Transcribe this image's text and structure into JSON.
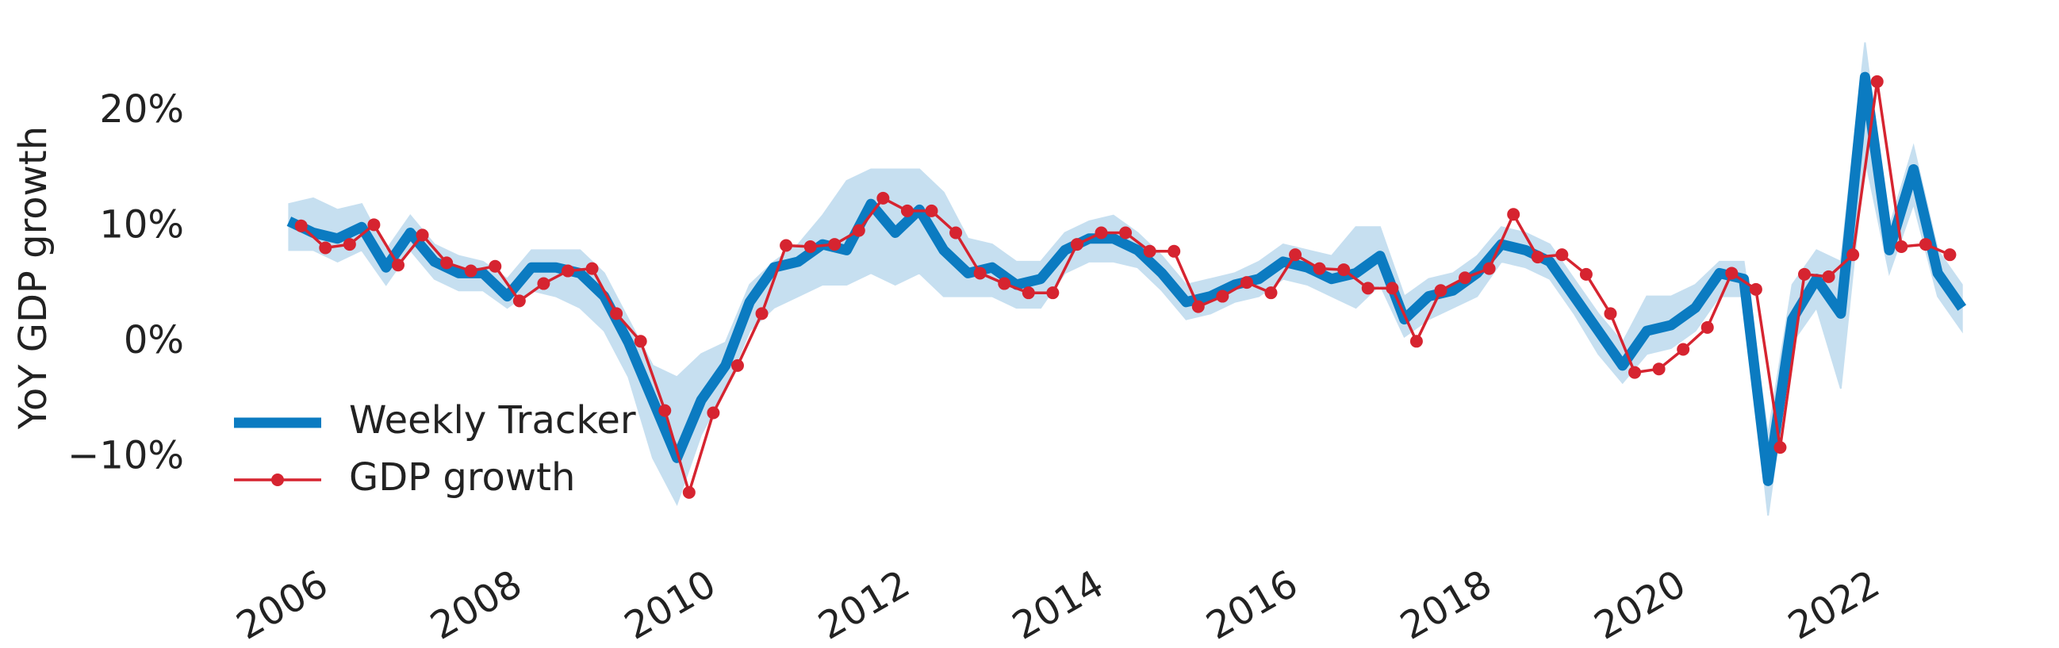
{
  "chart_data": {
    "type": "line",
    "ylabel": "YoY GDP growth",
    "xlim": [
      2005.0,
      2023.0
    ],
    "xticks": [
      2006,
      2008,
      2010,
      2012,
      2014,
      2016,
      2018,
      2020,
      2022
    ],
    "ylim": [
      -15,
      25
    ],
    "yticks": [
      {
        "value": -10,
        "label": "−10%"
      },
      {
        "value": 0,
        "label": "0%"
      },
      {
        "value": 10,
        "label": "10%"
      },
      {
        "value": 20,
        "label": "20%"
      }
    ],
    "grid": false,
    "legend": "lower left",
    "series": [
      {
        "name": "Weekly Tracker",
        "color": "#0b7bc1",
        "band_color": "#c6dff0",
        "x": [
          2005.625,
          2005.875,
          2006.125,
          2006.375,
          2006.625,
          2006.875,
          2007.125,
          2007.375,
          2007.625,
          2007.875,
          2008.125,
          2008.375,
          2008.625,
          2008.875,
          2009.125,
          2009.375,
          2009.625,
          2009.875,
          2010.125,
          2010.375,
          2010.625,
          2010.875,
          2011.125,
          2011.375,
          2011.625,
          2011.875,
          2012.125,
          2012.375,
          2012.625,
          2012.875,
          2013.125,
          2013.375,
          2013.625,
          2013.875,
          2014.125,
          2014.375,
          2014.625,
          2014.875,
          2015.125,
          2015.375,
          2015.625,
          2015.875,
          2016.125,
          2016.375,
          2016.625,
          2016.875,
          2017.125,
          2017.375,
          2017.625,
          2017.875,
          2018.125,
          2018.375,
          2018.625,
          2018.875,
          2019.125,
          2019.375,
          2019.625,
          2019.875,
          2020.125,
          2020.375,
          2020.625,
          2020.875,
          2021.125,
          2021.375,
          2021.625,
          2021.875,
          2022.125,
          2022.375,
          2022.625,
          2022.875
        ],
        "values": [
          10.5,
          9.5,
          9.0,
          10.0,
          6.5,
          9.5,
          7.0,
          6.0,
          6.0,
          4.0,
          6.5,
          6.5,
          6.0,
          4.0,
          0.0,
          -5.0,
          -10.0,
          -5.0,
          -2.0,
          3.5,
          6.5,
          7.0,
          8.5,
          8.0,
          12.0,
          9.5,
          11.5,
          8.0,
          6.0,
          6.5,
          5.0,
          5.5,
          8.0,
          9.0,
          9.0,
          8.0,
          6.0,
          3.5,
          4.0,
          5.0,
          5.5,
          7.0,
          6.5,
          5.5,
          6.0,
          7.5,
          2.0,
          4.0,
          4.5,
          6.0,
          8.5,
          8.0,
          7.0,
          4.0,
          1.0,
          -2.0,
          1.0,
          1.5,
          3.0,
          6.0,
          5.5,
          -12.0,
          2.0,
          5.5,
          2.5,
          23.0,
          8.0,
          15.0,
          6.0,
          3.0
        ],
        "lower": [
          8,
          8,
          7,
          8,
          5,
          8,
          5.5,
          4.5,
          4.5,
          3,
          4.5,
          4,
          3,
          1,
          -3,
          -10,
          -14,
          -8,
          -4,
          1,
          3,
          4,
          5,
          5,
          6,
          5,
          6,
          4,
          4,
          4,
          3,
          3,
          6,
          7,
          7,
          6.5,
          4.5,
          2,
          2.5,
          3.5,
          4,
          5.5,
          5,
          4,
          3,
          5,
          0.5,
          2,
          3,
          4,
          7,
          6.5,
          5.5,
          2.5,
          -1,
          -3.5,
          -1,
          -0.5,
          1,
          4,
          4,
          -15,
          0,
          3,
          -4,
          16,
          6,
          12,
          4,
          1
        ],
        "upper": [
          12,
          12.5,
          11.5,
          12,
          8,
          11,
          8.5,
          7.5,
          7,
          5.5,
          8,
          8,
          8,
          6,
          2,
          -2,
          -3,
          -1,
          0,
          5,
          7,
          8.5,
          11,
          14,
          15,
          15,
          15,
          13,
          9,
          8.5,
          7,
          7,
          9.5,
          10.5,
          11,
          9.5,
          7.5,
          5,
          5.5,
          6,
          7,
          8.5,
          8,
          7.5,
          10,
          10,
          4,
          5.5,
          6,
          7.5,
          10,
          9.5,
          8.5,
          5.5,
          2.5,
          0,
          4,
          4,
          5,
          7,
          7,
          -8,
          5,
          8,
          7,
          26,
          10,
          17,
          8,
          5
        ]
      },
      {
        "name": "GDP growth",
        "color": "#d62430",
        "x": [
          2005.75,
          2006.0,
          2006.25,
          2006.5,
          2006.75,
          2007.0,
          2007.25,
          2007.5,
          2007.75,
          2008.0,
          2008.25,
          2008.5,
          2008.75,
          2009.0,
          2009.25,
          2009.5,
          2009.75,
          2010.0,
          2010.25,
          2010.5,
          2010.75,
          2011.0,
          2011.25,
          2011.5,
          2011.75,
          2012.0,
          2012.25,
          2012.5,
          2012.75,
          2013.0,
          2013.25,
          2013.5,
          2013.75,
          2014.0,
          2014.25,
          2014.5,
          2014.75,
          2015.0,
          2015.25,
          2015.5,
          2015.75,
          2016.0,
          2016.25,
          2016.5,
          2016.75,
          2017.0,
          2017.25,
          2017.5,
          2017.75,
          2018.0,
          2018.25,
          2018.5,
          2018.75,
          2019.0,
          2019.25,
          2019.5,
          2019.75,
          2020.0,
          2020.25,
          2020.5,
          2020.75,
          2021.0,
          2021.25,
          2021.5,
          2021.75,
          2022.0,
          2022.25,
          2022.5,
          2022.75
        ],
        "values": [
          10.1,
          8.2,
          8.5,
          10.2,
          6.7,
          9.3,
          6.9,
          6.2,
          6.6,
          3.6,
          5.1,
          6.2,
          6.4,
          2.5,
          0.1,
          -5.9,
          -13.0,
          -6.1,
          -2.0,
          2.5,
          8.4,
          8.3,
          8.5,
          9.7,
          12.5,
          11.4,
          11.4,
          9.5,
          6.0,
          5.1,
          4.3,
          4.3,
          8.5,
          9.5,
          9.5,
          7.9,
          7.9,
          3.1,
          4.0,
          5.2,
          4.3,
          7.6,
          6.4,
          6.3,
          4.7,
          4.7,
          0.1,
          4.5,
          5.6,
          6.4,
          11.1,
          7.4,
          7.6,
          5.9,
          2.5,
          -2.6,
          -2.3,
          -0.6,
          1.3,
          6.0,
          4.6,
          -9.1,
          5.9,
          5.7,
          7.6,
          22.6,
          8.3,
          8.5,
          7.6
        ]
      }
    ]
  }
}
